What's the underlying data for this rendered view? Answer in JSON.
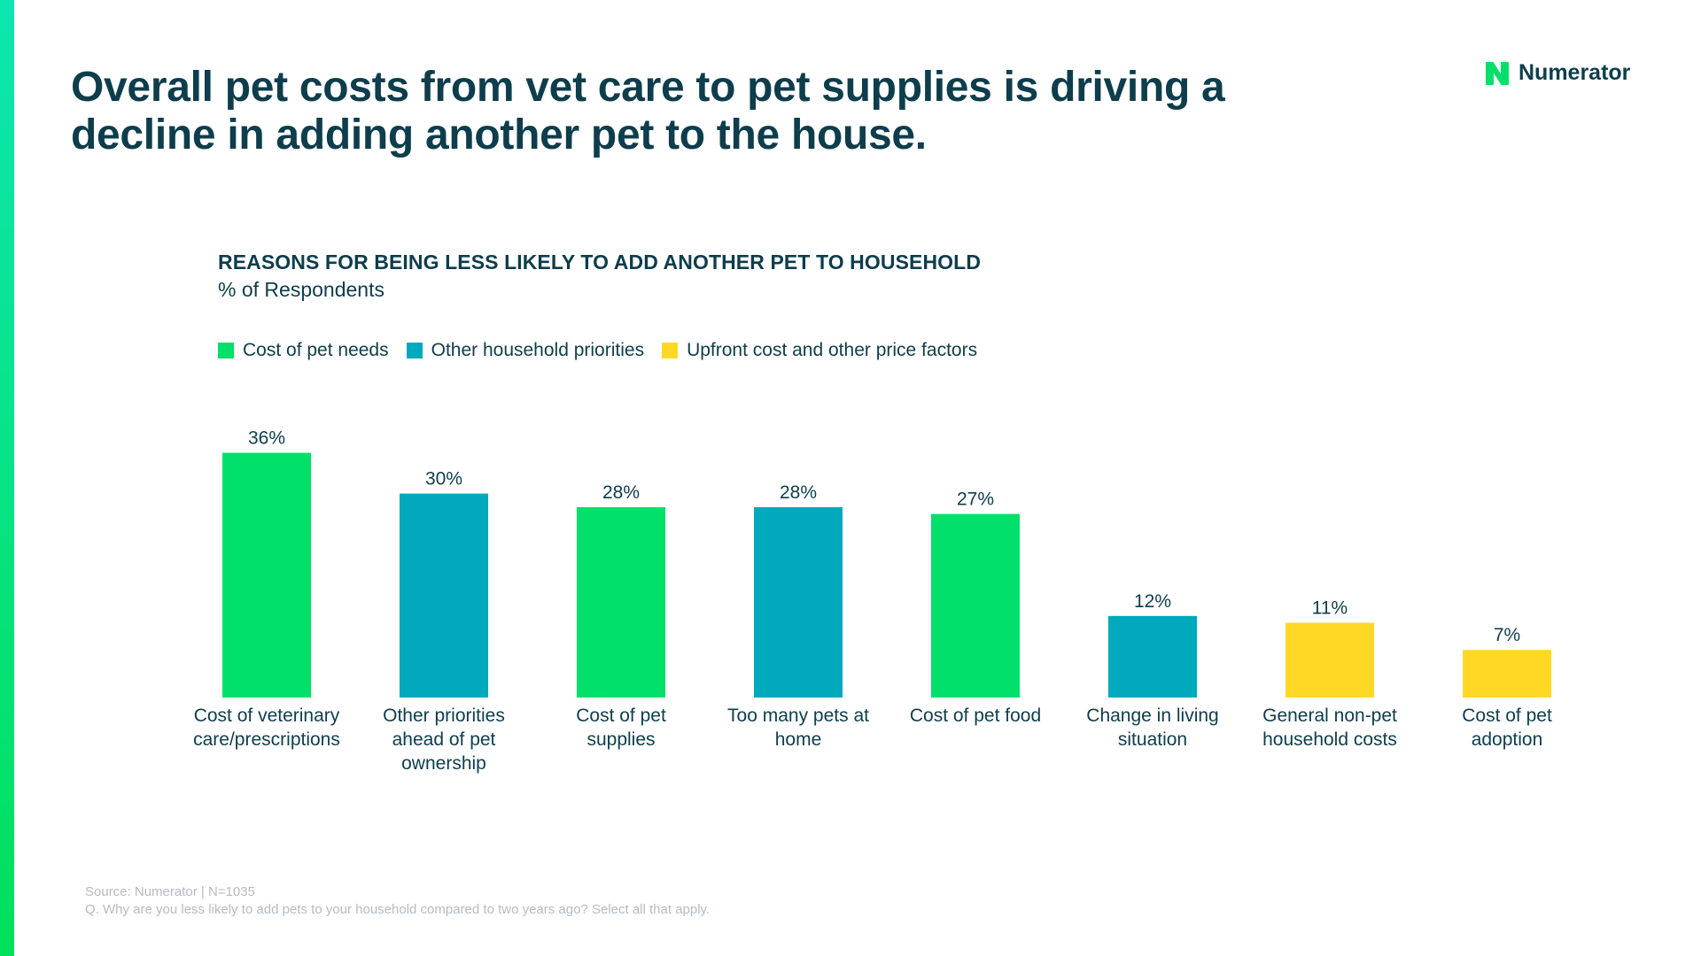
{
  "headline": "Overall pet costs from vet care to pet supplies is driving a decline in adding another pet to the house.",
  "brand": {
    "name": "Numerator",
    "icon": "numerator-n-logo-icon",
    "color": "#00e06a"
  },
  "colors": {
    "cost_of_pet_needs": "#00e06a",
    "other_household_priorities": "#00a9bc",
    "upfront_cost": "#ffd826",
    "text": "#0e3d4c"
  },
  "legend": [
    {
      "label": "Cost of pet needs",
      "color": "#00e06a"
    },
    {
      "label": "Other household priorities",
      "color": "#00a9bc"
    },
    {
      "label": "Upfront cost and other price factors",
      "color": "#ffd826"
    }
  ],
  "chart_data": {
    "type": "bar",
    "title": "REASONS FOR BEING LESS LIKELY TO ADD ANOTHER PET TO HOUSEHOLD",
    "subtitle": "% of Respondents",
    "xlabel": "",
    "ylabel": "",
    "ylim": [
      0,
      40
    ],
    "grid": false,
    "legend_position": "top-left",
    "value_suffix": "%",
    "categories": [
      [
        "Cost of veterinary",
        "care/prescriptions"
      ],
      [
        "Other priorities",
        "ahead of pet",
        "ownership"
      ],
      [
        "Cost of pet",
        "supplies"
      ],
      [
        "Too many pets at",
        "home"
      ],
      [
        "Cost of pet food"
      ],
      [
        "Change in living",
        "situation"
      ],
      [
        "General non-pet",
        "household costs"
      ],
      [
        "Cost of pet",
        "adoption"
      ]
    ],
    "values": [
      36,
      30,
      28,
      28,
      27,
      12,
      11,
      7
    ],
    "groups": [
      "Cost of pet needs",
      "Other household priorities",
      "Cost of pet needs",
      "Other household priorities",
      "Cost of pet needs",
      "Other household priorities",
      "Upfront cost and other price factors",
      "Upfront cost and other price factors"
    ],
    "group_colors": {
      "Cost of pet needs": "#00e06a",
      "Other household priorities": "#00a9bc",
      "Upfront cost and other price factors": "#ffd826"
    }
  },
  "footer": {
    "source": "Source: Numerator | N=1035",
    "question": "Q. Why are you less likely to add pets to your household compared to two years ago? Select all that apply."
  }
}
